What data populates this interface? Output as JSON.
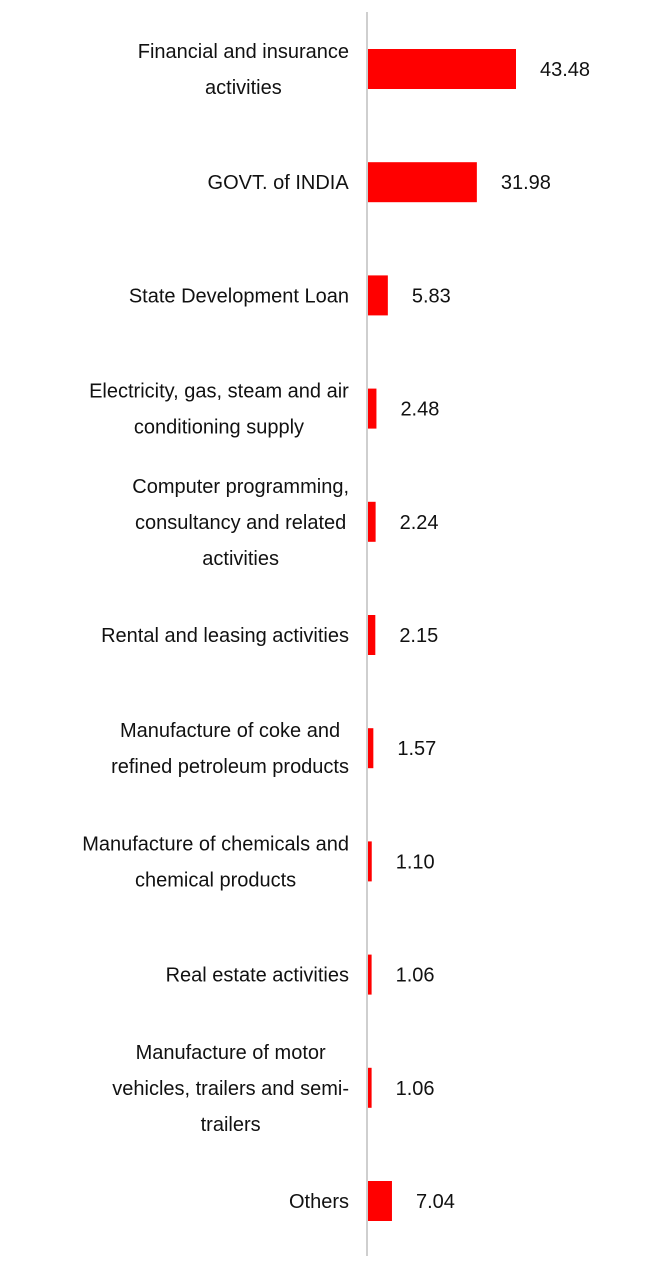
{
  "chart_data": {
    "type": "bar",
    "orientation": "horizontal",
    "categories": [
      "Financial and insurance activities",
      "GOVT. of INDIA",
      "State Development Loan",
      "Electricity, gas, steam and air conditioning supply",
      "Computer programming, consultancy and related activities",
      "Rental and leasing activities",
      "Manufacture of coke and refined petroleum products",
      "Manufacture of chemicals and chemical products",
      "Real estate activities",
      "Manufacture of motor vehicles, trailers and semi-trailers",
      "Others"
    ],
    "category_lines": [
      [
        "Financial and insurance",
        "activities"
      ],
      [
        "GOVT. of INDIA"
      ],
      [
        "State Development Loan"
      ],
      [
        "Electricity, gas, steam and air",
        "conditioning supply"
      ],
      [
        "Computer programming,",
        "consultancy and related",
        "activities"
      ],
      [
        "Rental and leasing activities"
      ],
      [
        "Manufacture of coke and",
        "refined petroleum products"
      ],
      [
        "Manufacture of chemicals and",
        "chemical products"
      ],
      [
        "Real estate activities"
      ],
      [
        "Manufacture of motor",
        "vehicles, trailers and semi-",
        "trailers"
      ],
      [
        "Others"
      ]
    ],
    "values": [
      43.48,
      31.98,
      5.83,
      2.48,
      2.24,
      2.15,
      1.57,
      1.1,
      1.06,
      1.06,
      7.04
    ],
    "value_labels": [
      "43.48",
      "31.98",
      "5.83",
      "2.48",
      "2.24",
      "2.15",
      "1.57",
      "1.10",
      "1.06",
      "1.06",
      "7.04"
    ],
    "bar_color": "#ff0000",
    "axis_color": "#cfcfcf",
    "title": "",
    "xlabel": "",
    "ylabel": "",
    "xlim": [
      0,
      43.48
    ],
    "grid": false,
    "legend": "none"
  }
}
